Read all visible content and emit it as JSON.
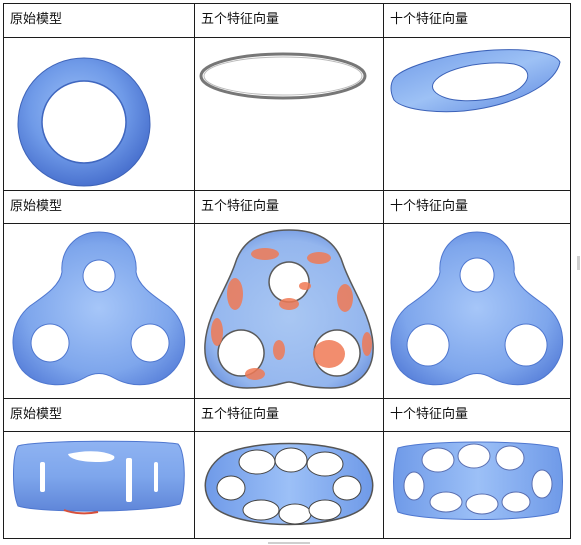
{
  "table": {
    "rows": [
      {
        "headers": [
          "原始模型",
          "五个特征向量",
          "十个特征向量"
        ]
      },
      {
        "headers": [
          "原始模型",
          "五个特征向量",
          "十个特征向量"
        ]
      },
      {
        "headers": [
          "原始模型",
          "五个特征向量",
          "十个特征向量"
        ]
      }
    ]
  },
  "colors": {
    "mesh_blue": "#7fa9ee",
    "mesh_blue_dark": "#4d78d2",
    "mesh_red": "#f07a55",
    "grid_line": "#1c1c1c"
  }
}
